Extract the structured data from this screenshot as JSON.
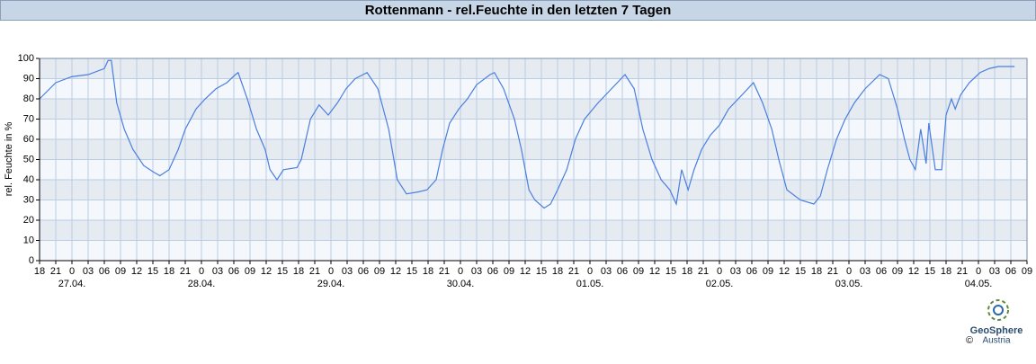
{
  "chart_data": {
    "type": "line",
    "title": "Rottenmann - rel.Feuchte in den letzten 7 Tagen",
    "ylabel": "rel. Feuchte in %",
    "color": "#4a7fe0",
    "grid": true,
    "xlim": [
      0,
      183
    ],
    "ylim": [
      0,
      100
    ],
    "yticks": [
      0,
      10,
      20,
      30,
      40,
      50,
      60,
      70,
      80,
      90,
      100
    ],
    "xticks": [
      {
        "value": 0,
        "label": "18"
      },
      {
        "value": 3,
        "label": "21"
      },
      {
        "value": 6,
        "label": "0"
      },
      {
        "value": 9,
        "label": "03"
      },
      {
        "value": 12,
        "label": "06"
      },
      {
        "value": 15,
        "label": "09"
      },
      {
        "value": 18,
        "label": "12"
      },
      {
        "value": 21,
        "label": "15"
      },
      {
        "value": 24,
        "label": "18"
      },
      {
        "value": 27,
        "label": "21"
      },
      {
        "value": 30,
        "label": "0"
      },
      {
        "value": 33,
        "label": "03"
      },
      {
        "value": 36,
        "label": "06"
      },
      {
        "value": 39,
        "label": "09"
      },
      {
        "value": 42,
        "label": "12"
      },
      {
        "value": 45,
        "label": "15"
      },
      {
        "value": 48,
        "label": "18"
      },
      {
        "value": 51,
        "label": "21"
      },
      {
        "value": 54,
        "label": "0"
      },
      {
        "value": 57,
        "label": "03"
      },
      {
        "value": 60,
        "label": "06"
      },
      {
        "value": 63,
        "label": "09"
      },
      {
        "value": 66,
        "label": "12"
      },
      {
        "value": 69,
        "label": "15"
      },
      {
        "value": 72,
        "label": "18"
      },
      {
        "value": 75,
        "label": "21"
      },
      {
        "value": 78,
        "label": "0"
      },
      {
        "value": 81,
        "label": "03"
      },
      {
        "value": 84,
        "label": "06"
      },
      {
        "value": 87,
        "label": "09"
      },
      {
        "value": 90,
        "label": "12"
      },
      {
        "value": 93,
        "label": "15"
      },
      {
        "value": 96,
        "label": "18"
      },
      {
        "value": 99,
        "label": "21"
      },
      {
        "value": 102,
        "label": "0"
      },
      {
        "value": 105,
        "label": "03"
      },
      {
        "value": 108,
        "label": "06"
      },
      {
        "value": 111,
        "label": "09"
      },
      {
        "value": 114,
        "label": "12"
      },
      {
        "value": 117,
        "label": "15"
      },
      {
        "value": 120,
        "label": "18"
      },
      {
        "value": 123,
        "label": "21"
      },
      {
        "value": 126,
        "label": "0"
      },
      {
        "value": 129,
        "label": "03"
      },
      {
        "value": 132,
        "label": "06"
      },
      {
        "value": 135,
        "label": "09"
      },
      {
        "value": 138,
        "label": "12"
      },
      {
        "value": 141,
        "label": "15"
      },
      {
        "value": 144,
        "label": "18"
      },
      {
        "value": 147,
        "label": "21"
      },
      {
        "value": 150,
        "label": "0"
      },
      {
        "value": 153,
        "label": "03"
      },
      {
        "value": 156,
        "label": "06"
      },
      {
        "value": 159,
        "label": "09"
      },
      {
        "value": 162,
        "label": "12"
      },
      {
        "value": 165,
        "label": "15"
      },
      {
        "value": 168,
        "label": "18"
      },
      {
        "value": 171,
        "label": "21"
      },
      {
        "value": 174,
        "label": "0"
      },
      {
        "value": 177,
        "label": "03"
      },
      {
        "value": 180,
        "label": "06"
      },
      {
        "value": 183,
        "label": "09"
      }
    ],
    "date_labels": [
      {
        "value": 6,
        "label": "27.04."
      },
      {
        "value": 30,
        "label": "28.04."
      },
      {
        "value": 54,
        "label": "29.04."
      },
      {
        "value": 78,
        "label": "30.04."
      },
      {
        "value": 102,
        "label": "01.05."
      },
      {
        "value": 126,
        "label": "02.05."
      },
      {
        "value": 150,
        "label": "03.05."
      },
      {
        "value": 174,
        "label": "04.05."
      }
    ],
    "x": [
      0,
      3,
      6,
      9,
      12,
      12.7,
      13.3,
      14.3,
      15.7,
      17.3,
      19.3,
      21,
      22.3,
      24,
      25.7,
      27,
      29,
      30.7,
      32.7,
      34.7,
      36.3,
      36.8,
      38.5,
      40.2,
      41.8,
      42.7,
      44,
      45.2,
      47.7,
      48.5,
      50.2,
      51.8,
      53.5,
      55.2,
      56.8,
      58.5,
      60.7,
      62.7,
      64.7,
      66.3,
      68,
      70.2,
      71.8,
      73.5,
      74.7,
      76,
      77.7,
      79.3,
      81,
      83.5,
      84.3,
      86,
      88,
      89.3,
      90.7,
      91.8,
      93.5,
      94.7,
      96,
      97.7,
      99.3,
      101,
      103.5,
      106,
      108.5,
      110.2,
      111.8,
      113.5,
      115.2,
      116.8,
      118,
      119,
      120.2,
      121.3,
      122.7,
      124.3,
      126,
      127.7,
      130.2,
      132.3,
      134,
      135.7,
      137,
      138.5,
      141,
      143.5,
      144.7,
      146,
      147.7,
      149.3,
      151,
      153,
      155.7,
      157.3,
      159,
      160.3,
      161.3,
      162.3,
      163.3,
      164.3,
      164.8,
      166,
      167.2,
      168,
      169,
      169.7,
      170.7,
      172.3,
      174.3,
      176,
      177.7,
      180.7
    ],
    "values": [
      80,
      88,
      91,
      92,
      95,
      99,
      99,
      78,
      65,
      55,
      47,
      44,
      42,
      45,
      55,
      65,
      75,
      80,
      85,
      88,
      92,
      93,
      80,
      65,
      55,
      45,
      40,
      45,
      46,
      50,
      70,
      77,
      72,
      78,
      85,
      90,
      93,
      85,
      65,
      40,
      33,
      34,
      35,
      40,
      55,
      68,
      75,
      80,
      87,
      92,
      93,
      85,
      70,
      55,
      35,
      30,
      26,
      28,
      35,
      45,
      60,
      70,
      78,
      85,
      92,
      85,
      65,
      50,
      40,
      35,
      28,
      45,
      35,
      45,
      55,
      62,
      67,
      75,
      82,
      88,
      78,
      65,
      50,
      35,
      30,
      28,
      32,
      45,
      60,
      70,
      78,
      85,
      92,
      90,
      75,
      60,
      50,
      45,
      65,
      48,
      68,
      45,
      45,
      72,
      80,
      75,
      82,
      88,
      93,
      95,
      96,
      96
    ]
  },
  "logo": {
    "name": "GeoSphere",
    "sub": "Austria",
    "copyright": "©"
  }
}
